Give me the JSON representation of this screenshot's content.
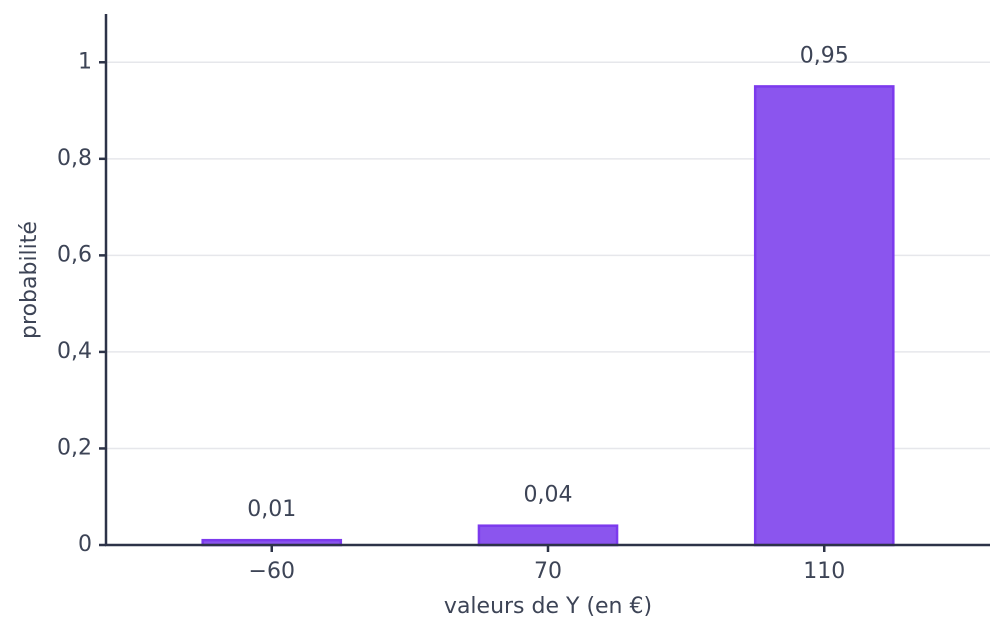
{
  "chart_data": {
    "type": "bar",
    "categories": [
      "−60",
      "70",
      "110"
    ],
    "values": [
      0.01,
      0.04,
      0.95
    ],
    "value_labels": [
      "0,01",
      "0,04",
      "0,95"
    ],
    "color": "#8b55ee",
    "edge_color": "#7c3aed",
    "x_label": "valeurs de Y (en €)",
    "y_label": "probabilité",
    "ylim": [
      0,
      1.1
    ],
    "yticks": [
      0,
      {
        "value": 0.2,
        "label": "0,2"
      },
      {
        "value": 0.4,
        "label": "0,4"
      },
      {
        "value": 0.6,
        "label": "0,6"
      },
      {
        "value": 0.8,
        "label": "0,8"
      },
      1
    ],
    "grid": true
  }
}
